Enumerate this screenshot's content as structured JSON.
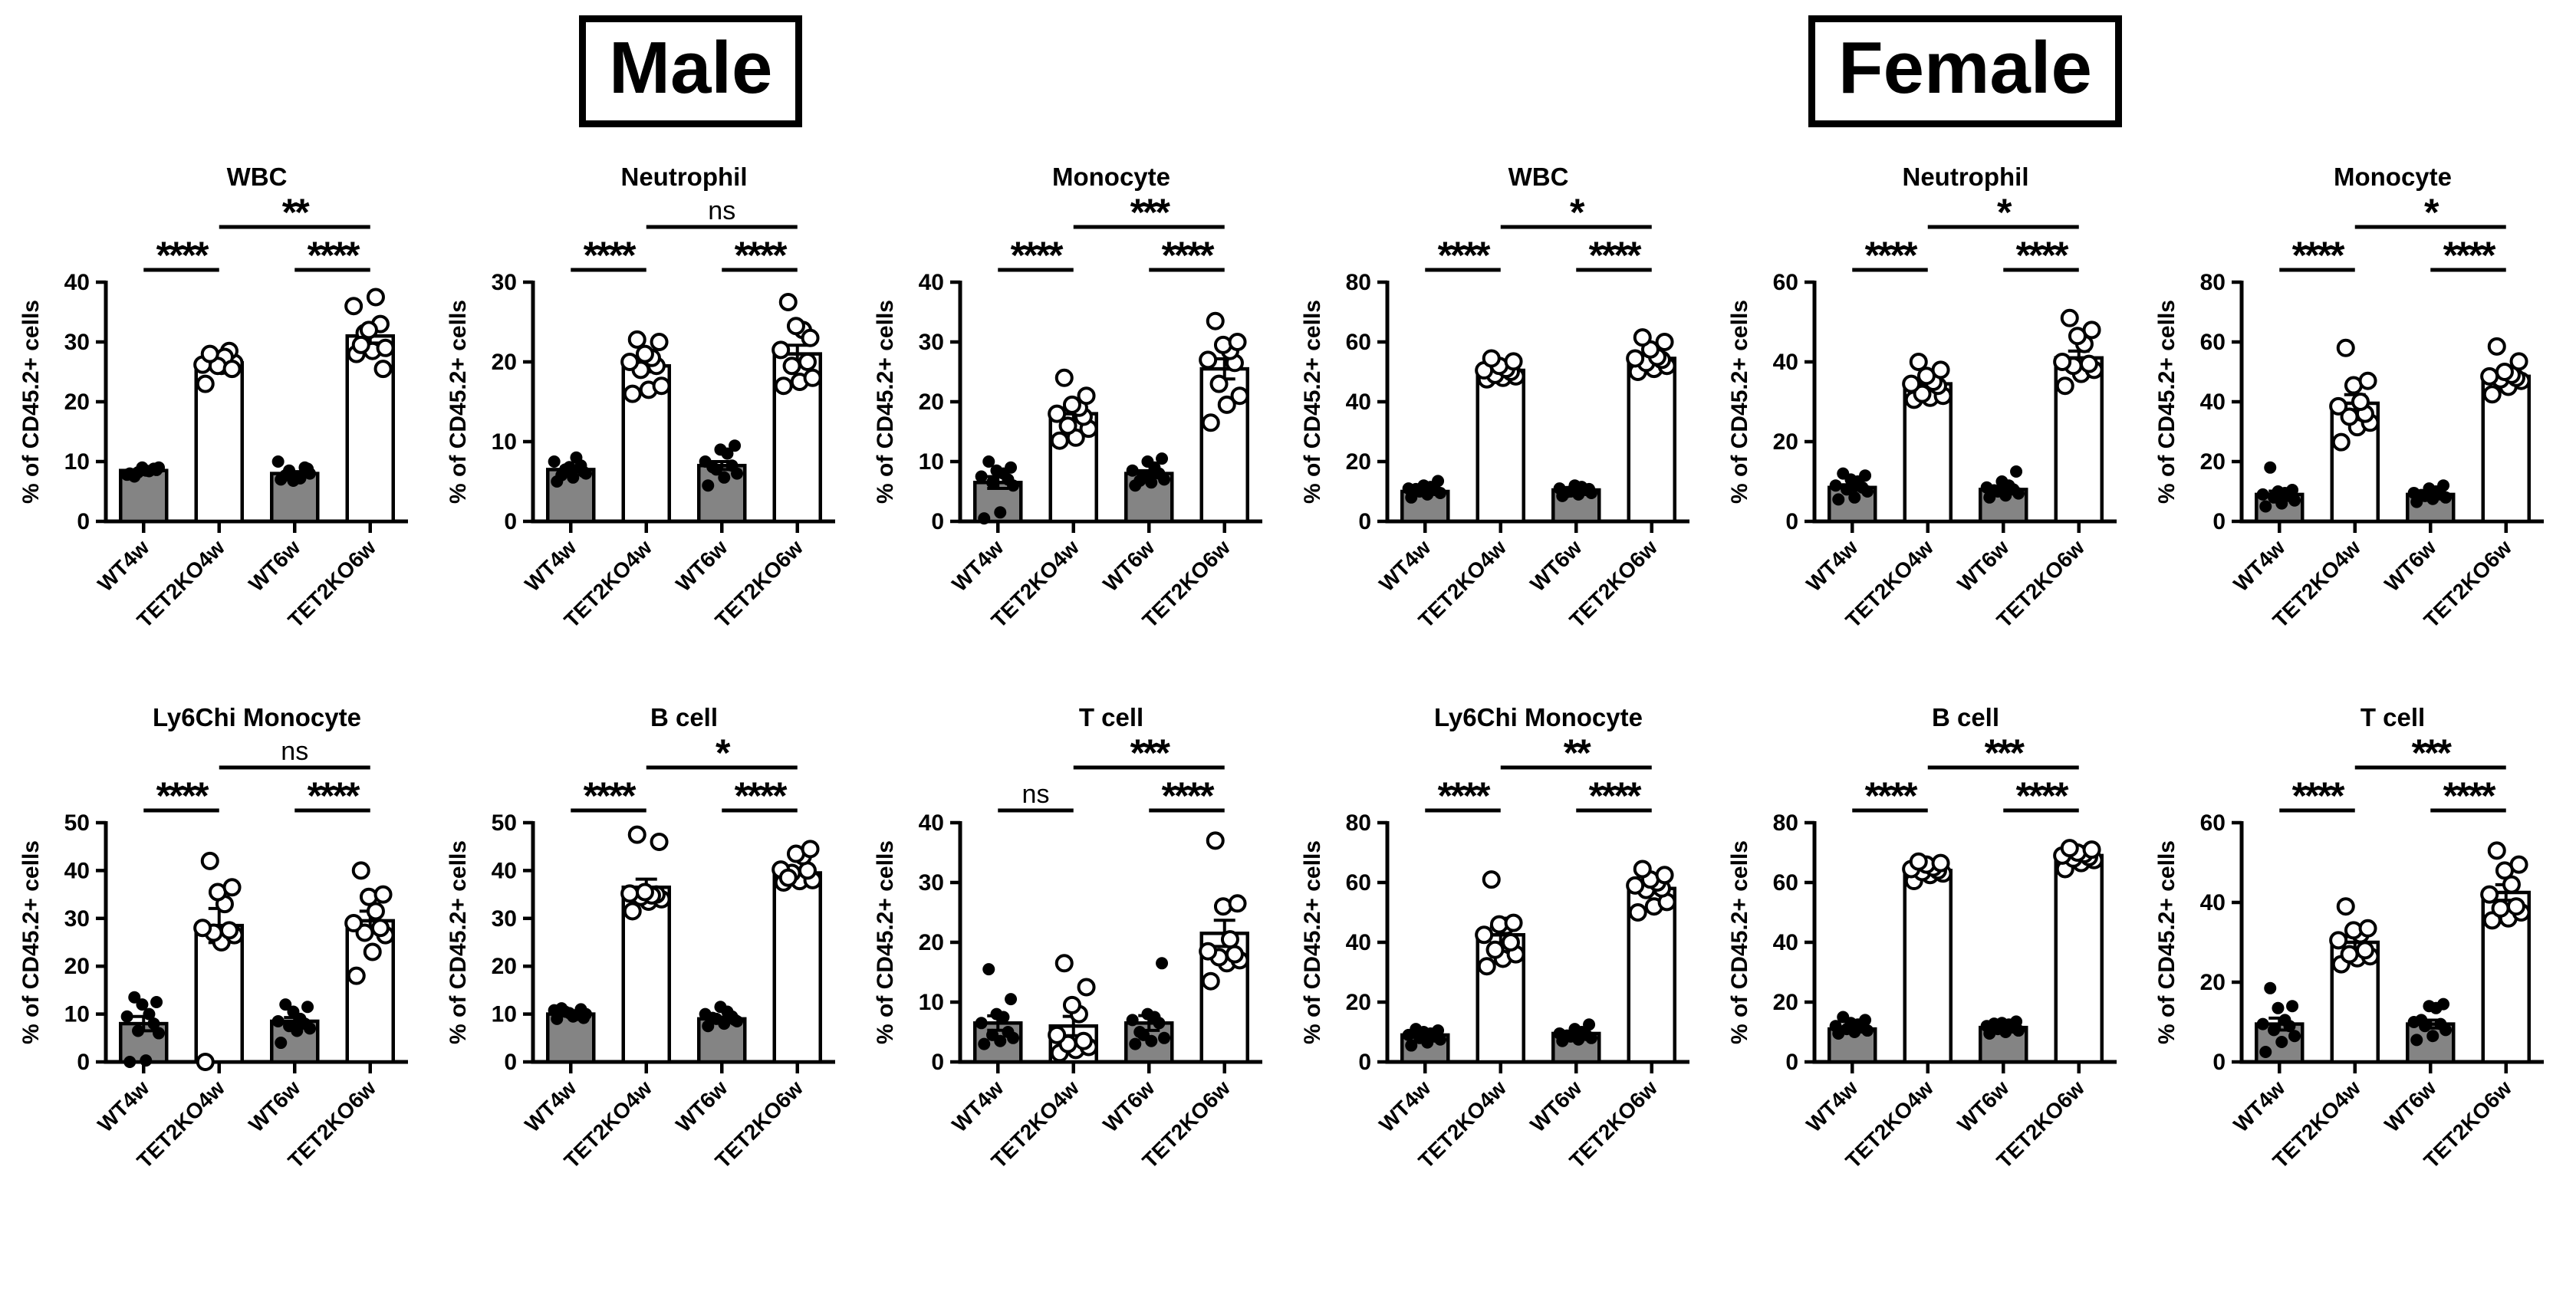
{
  "figure": {
    "section_labels": {
      "male": "Male",
      "female": "Female"
    },
    "y_axis_label": "% of CD45.2+ cells",
    "categories": [
      "WT4w",
      "TET2KO4w",
      "WT6w",
      "TET2KO6w"
    ],
    "colors": {
      "wt_bar": "#848484",
      "ko_bar": "#ffffff",
      "ink": "#000000",
      "background": "#ffffff"
    }
  },
  "chart_data": [
    {
      "type": "bar",
      "section": "Male",
      "title": "WBC",
      "ylabel": "% of CD45.2+ cells",
      "ylim": [
        0,
        40
      ],
      "ytick_step": 10,
      "categories": [
        "WT4w",
        "TET2KO4w",
        "WT6w",
        "TET2KO6w"
      ],
      "means": [
        8.5,
        26.5,
        8.0,
        31.0
      ],
      "significance": {
        "pair_left": "****",
        "pair_right": "****",
        "across": "**"
      },
      "points": {
        "WT4w": [
          8,
          8.5,
          9,
          8.2,
          8.8,
          7.8,
          8.4,
          9,
          8.6,
          7.5
        ],
        "TET2KO4w": [
          23,
          26,
          26.5,
          27,
          28.5,
          26.2,
          27.5,
          26,
          25.5,
          28
        ],
        "WT6w": [
          7,
          7.5,
          8,
          8.5,
          9,
          10,
          7.2,
          6.8,
          8.8,
          7.7
        ],
        "TET2KO6w": [
          28,
          28.5,
          29,
          31.5,
          33,
          36,
          37.5,
          32,
          25.5,
          29.5
        ]
      }
    },
    {
      "type": "bar",
      "section": "Male",
      "title": "Neutrophil",
      "ylabel": "% of CD45.2+ cells",
      "ylim": [
        0,
        30
      ],
      "ytick_step": 10,
      "categories": [
        "WT4w",
        "TET2KO4w",
        "WT6w",
        "TET2KO6w"
      ],
      "means": [
        6.5,
        19.5,
        7.0,
        21.0
      ],
      "significance": {
        "pair_left": "****",
        "pair_right": "****",
        "across": "ns"
      },
      "points": {
        "WT4w": [
          5,
          5.5,
          6,
          6.5,
          7,
          7.5,
          8,
          6.8,
          6.2,
          5.8
        ],
        "TET2KO4w": [
          16,
          16.5,
          17,
          19,
          19.5,
          20,
          20.5,
          21,
          22.5,
          22.8
        ],
        "WT6w": [
          4.5,
          5.5,
          6,
          6.5,
          7,
          7.5,
          8.5,
          9,
          9.5,
          6.8
        ],
        "TET2KO6w": [
          17,
          17.5,
          18,
          19.5,
          20,
          21.5,
          24,
          24.5,
          23,
          27.5
        ]
      }
    },
    {
      "type": "bar",
      "section": "Male",
      "title": "Monocyte",
      "ylabel": "% of CD45.2+ cells",
      "ylim": [
        0,
        40
      ],
      "ytick_step": 10,
      "categories": [
        "WT4w",
        "TET2KO4w",
        "WT6w",
        "TET2KO6w"
      ],
      "means": [
        6.5,
        18.0,
        8.0,
        25.5
      ],
      "significance": {
        "pair_left": "****",
        "pair_right": "****",
        "across": "***"
      },
      "points": {
        "WT4w": [
          0.5,
          1.5,
          6,
          6.5,
          7,
          7.5,
          8,
          8.5,
          9,
          10
        ],
        "TET2KO4w": [
          13.5,
          14,
          15.5,
          16,
          17.5,
          18,
          19,
          19.5,
          21,
          24
        ],
        "WT6w": [
          6,
          6.5,
          7,
          7.5,
          8,
          8.5,
          9,
          10,
          10.5,
          6.8
        ],
        "TET2KO6w": [
          16.5,
          19.5,
          21,
          23,
          26.5,
          27,
          28.5,
          29.5,
          30,
          33.5
        ]
      }
    },
    {
      "type": "bar",
      "section": "Female",
      "title": "WBC",
      "ylabel": "% of CD45.2+ cells",
      "ylim": [
        0,
        80
      ],
      "ytick_step": 20,
      "categories": [
        "WT4w",
        "TET2KO4w",
        "WT6w",
        "TET2KO6w"
      ],
      "means": [
        10.0,
        50.5,
        10.5,
        54.5
      ],
      "significance": {
        "pair_left": "****",
        "pair_right": "****",
        "across": "*"
      },
      "points": {
        "WT4w": [
          8,
          9,
          9.5,
          10,
          10.5,
          11,
          11.5,
          12,
          13.5,
          10.8
        ],
        "TET2KO4w": [
          47.5,
          48,
          48.5,
          49,
          50,
          50.5,
          51,
          52,
          53.5,
          54.5
        ],
        "WT6w": [
          8.5,
          9,
          9.5,
          10,
          10.5,
          11,
          11.5,
          12,
          10.8,
          9.8
        ],
        "TET2KO6w": [
          50,
          51,
          52,
          53,
          54,
          54.5,
          55,
          57.5,
          60,
          61.5
        ]
      }
    },
    {
      "type": "bar",
      "section": "Female",
      "title": "Neutrophil",
      "ylabel": "% of CD45.2+ cells",
      "ylim": [
        0,
        60
      ],
      "ytick_step": 20,
      "categories": [
        "WT4w",
        "TET2KO4w",
        "WT6w",
        "TET2KO6w"
      ],
      "means": [
        8.5,
        34.5,
        8.0,
        41.0
      ],
      "significance": {
        "pair_left": "****",
        "pair_right": "****",
        "across": "*"
      },
      "points": {
        "WT4w": [
          5.5,
          6,
          7.5,
          8,
          8.5,
          9,
          10,
          10.5,
          11.5,
          12
        ],
        "TET2KO4w": [
          30.5,
          31,
          31.5,
          32,
          34,
          34.5,
          35,
          36.5,
          38,
          40
        ],
        "WT6w": [
          6,
          6.5,
          7,
          7.5,
          8,
          8.5,
          9,
          10,
          12.5,
          7.8
        ],
        "TET2KO6w": [
          34,
          37,
          38,
          39,
          39.5,
          40,
          44.5,
          46.5,
          48,
          51
        ]
      }
    },
    {
      "type": "bar",
      "section": "Female",
      "title": "Monocyte",
      "ylabel": "% of CD45.2+ cells",
      "ylim": [
        0,
        80
      ],
      "ytick_step": 20,
      "categories": [
        "WT4w",
        "TET2KO4w",
        "WT6w",
        "TET2KO6w"
      ],
      "means": [
        9.0,
        39.5,
        9.0,
        48.5
      ],
      "significance": {
        "pair_left": "****",
        "pair_right": "****",
        "across": "*"
      },
      "points": {
        "WT4w": [
          5,
          6,
          7,
          8,
          8.5,
          9,
          9.5,
          10,
          10.5,
          18
        ],
        "TET2KO4w": [
          26.5,
          31.5,
          33,
          35,
          36,
          38.5,
          40,
          45.5,
          47,
          58
        ],
        "WT6w": [
          6.5,
          7.5,
          8,
          8.5,
          9,
          9.5,
          10,
          11,
          12,
          8.8
        ],
        "TET2KO6w": [
          42.5,
          45,
          47,
          47.5,
          48,
          48.5,
          49,
          50,
          53.5,
          58.5
        ]
      }
    },
    {
      "type": "bar",
      "section": "Male",
      "title": "Ly6Chi Monocyte",
      "ylabel": "% of CD45.2+ cells",
      "ylim": [
        0,
        50
      ],
      "ytick_step": 10,
      "categories": [
        "WT4w",
        "TET2KO4w",
        "WT6w",
        "TET2KO6w"
      ],
      "means": [
        8.0,
        28.5,
        8.5,
        29.5
      ],
      "significance": {
        "pair_left": "****",
        "pair_right": "****",
        "across": "ns"
      },
      "points": {
        "WT4w": [
          0,
          0.3,
          6,
          6.5,
          8,
          9.5,
          10,
          12,
          12.5,
          13.5
        ],
        "TET2KO4w": [
          0,
          25,
          26.5,
          27,
          27.5,
          28,
          33,
          35.5,
          36.5,
          42
        ],
        "WT6w": [
          4,
          6.5,
          7,
          7.5,
          8,
          8.5,
          9,
          10.5,
          11.5,
          12
        ],
        "TET2KO6w": [
          18,
          23,
          26.5,
          27,
          28,
          29,
          31.5,
          34.5,
          35,
          40
        ]
      }
    },
    {
      "type": "bar",
      "section": "Male",
      "title": "B cell",
      "ylabel": "% of CD45.2+ cells",
      "ylim": [
        0,
        50
      ],
      "ytick_step": 10,
      "categories": [
        "WT4w",
        "TET2KO4w",
        "WT6w",
        "TET2KO6w"
      ],
      "means": [
        10.0,
        36.5,
        9.0,
        39.5
      ],
      "significance": {
        "pair_left": "****",
        "pair_right": "****",
        "across": "*"
      },
      "points": {
        "WT4w": [
          9,
          9.5,
          10,
          10.5,
          11,
          10.8,
          9.8,
          10.2,
          9.2,
          11.2
        ],
        "TET2KO4w": [
          31.5,
          33.5,
          34,
          34.5,
          35,
          35.2,
          34.8,
          35.5,
          46,
          47.5
        ],
        "WT6w": [
          7.5,
          8,
          8.5,
          9,
          9.5,
          10,
          10.5,
          11.5,
          8.8,
          9.2
        ],
        "TET2KO6w": [
          37.5,
          37.8,
          38,
          39.5,
          40,
          40.2,
          43,
          43.5,
          44.5,
          38.5
        ]
      }
    },
    {
      "type": "bar",
      "section": "Male",
      "title": "T cell",
      "ylabel": "% of CD45.2+ cells",
      "ylim": [
        0,
        40
      ],
      "ytick_step": 10,
      "categories": [
        "WT4w",
        "TET2KO4w",
        "WT6w",
        "TET2KO6w"
      ],
      "means": [
        6.5,
        6.0,
        6.5,
        21.5
      ],
      "significance": {
        "pair_left": "ns",
        "pair_right": "****",
        "across": "***"
      },
      "points": {
        "WT4w": [
          3,
          3.5,
          4,
          4.5,
          5,
          6.5,
          7.5,
          8,
          10.5,
          15.5
        ],
        "TET2KO4w": [
          1.5,
          2,
          2.5,
          3,
          3.5,
          4.5,
          8,
          9.5,
          12.5,
          16.5
        ],
        "WT6w": [
          3,
          3.5,
          4,
          4.5,
          6.5,
          7,
          7.5,
          8,
          16.5,
          5
        ],
        "TET2KO6w": [
          13.5,
          16.5,
          17,
          17.5,
          18,
          18.5,
          20.5,
          26,
          26.5,
          37
        ]
      }
    },
    {
      "type": "bar",
      "section": "Female",
      "title": "Ly6Chi Monocyte",
      "ylabel": "% of CD45.2+ cells",
      "ylim": [
        0,
        80
      ],
      "ytick_step": 20,
      "categories": [
        "WT4w",
        "TET2KO4w",
        "WT6w",
        "TET2KO6w"
      ],
      "means": [
        9.0,
        42.5,
        9.5,
        58.0
      ],
      "significance": {
        "pair_left": "****",
        "pair_right": "****",
        "across": "**"
      },
      "points": {
        "WT4w": [
          5.5,
          6.5,
          7.5,
          8,
          8.5,
          9,
          9.5,
          10,
          10.5,
          11
        ],
        "TET2KO4w": [
          32,
          34.5,
          36,
          37.5,
          40,
          42.5,
          45.5,
          46,
          46.5,
          61
        ],
        "WT6w": [
          7,
          7.5,
          8,
          8.5,
          9,
          9.5,
          10,
          11,
          12.5,
          8.8
        ],
        "TET2KO6w": [
          50,
          52,
          53.5,
          57.5,
          58,
          59,
          60,
          61,
          62.5,
          64.5
        ]
      }
    },
    {
      "type": "bar",
      "section": "Female",
      "title": "B cell",
      "ylabel": "% of CD45.2+ cells",
      "ylim": [
        0,
        80
      ],
      "ytick_step": 20,
      "categories": [
        "WT4w",
        "TET2KO4w",
        "WT6w",
        "TET2KO6w"
      ],
      "means": [
        11.0,
        64.0,
        11.5,
        69.0
      ],
      "significance": {
        "pair_left": "****",
        "pair_right": "****",
        "across": "***"
      },
      "points": {
        "WT4w": [
          9.5,
          10,
          10.5,
          11,
          11.5,
          12,
          12.5,
          13,
          14,
          15
        ],
        "TET2KO4w": [
          60.5,
          62.5,
          63,
          63.5,
          64,
          64.5,
          65,
          66,
          66.5,
          67
        ],
        "WT6w": [
          9.5,
          10,
          10.5,
          11,
          11.5,
          12,
          12.5,
          13,
          13.5,
          12.8
        ],
        "TET2KO6w": [
          64.5,
          66.5,
          67.5,
          68,
          68.5,
          69,
          69.5,
          70,
          71,
          71.5
        ]
      }
    },
    {
      "type": "bar",
      "section": "Female",
      "title": "T cell",
      "ylabel": "% of CD45.2+ cells",
      "ylim": [
        0,
        60
      ],
      "ytick_step": 20,
      "categories": [
        "WT4w",
        "TET2KO4w",
        "WT6w",
        "TET2KO6w"
      ],
      "means": [
        9.5,
        30.0,
        9.5,
        42.5
      ],
      "significance": {
        "pair_left": "****",
        "pair_right": "****",
        "across": "***"
      },
      "points": {
        "WT4w": [
          2.5,
          5,
          6.5,
          8,
          9,
          9.5,
          10.5,
          13.5,
          14,
          18.5
        ],
        "TET2KO4w": [
          24.5,
          26,
          26.5,
          27,
          28,
          30.5,
          32,
          33,
          33.5,
          39
        ],
        "WT6w": [
          5.5,
          6.5,
          8,
          9,
          9.5,
          10,
          13.5,
          14,
          14.5,
          10.5
        ],
        "TET2KO6w": [
          35.5,
          36,
          37.5,
          38.5,
          39,
          42,
          44.5,
          48,
          49.5,
          53
        ]
      }
    }
  ]
}
